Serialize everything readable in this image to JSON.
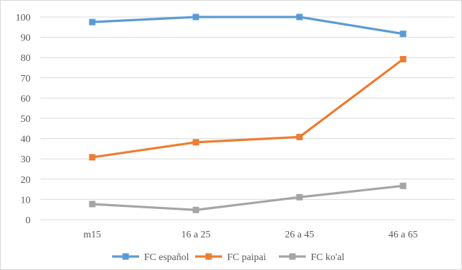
{
  "chart_data": {
    "type": "line",
    "categories": [
      "m15",
      "16 a 25",
      "26 a 45",
      "46 a 65"
    ],
    "series": [
      {
        "name": "FC español",
        "values": [
          97.5,
          100,
          100,
          91.7
        ],
        "color": "#5b9bd5"
      },
      {
        "name": "FC paipai",
        "values": [
          30.8,
          38.2,
          40.8,
          79.2
        ],
        "color": "#ed7d31"
      },
      {
        "name": "FC ko'al",
        "values": [
          7.7,
          4.8,
          11.1,
          16.7
        ],
        "color": "#a5a5a5"
      }
    ],
    "ylim": [
      0,
      100
    ],
    "yticks": [
      0,
      10,
      20,
      30,
      40,
      50,
      60,
      70,
      80,
      90,
      100
    ],
    "grid": true,
    "gridline_color": "#d9d9d9",
    "legend": "bottom",
    "marker": "square"
  }
}
